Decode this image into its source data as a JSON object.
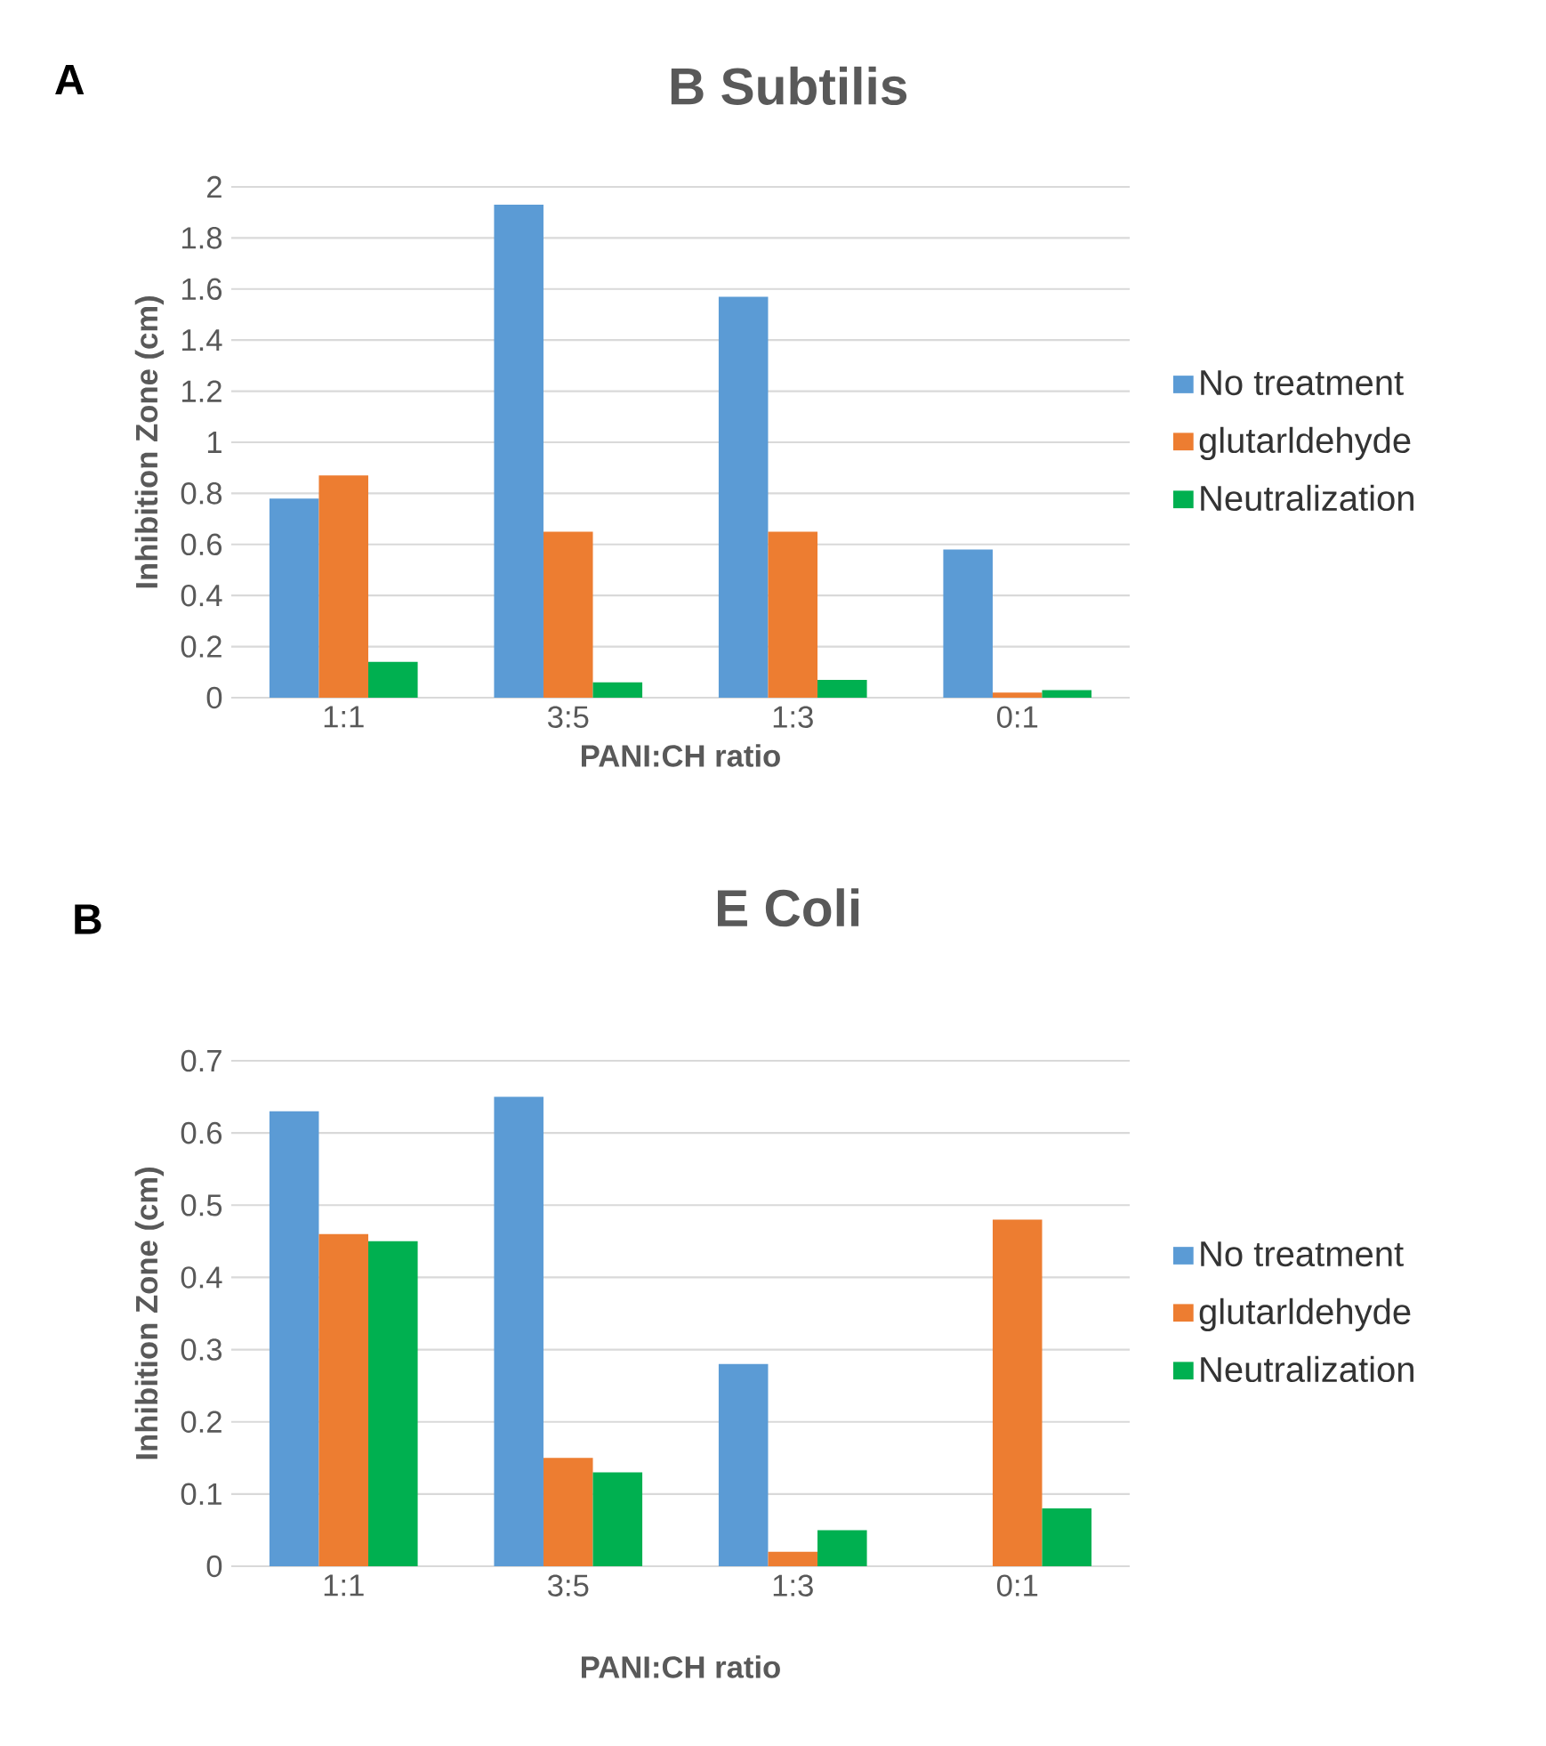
{
  "chart_data": [
    {
      "type": "bar",
      "title": "B Subtilis",
      "xlabel": "PANI:CH ratio",
      "ylabel": "Inhibition Zone (cm)",
      "annotations": [
        "A"
      ],
      "categories": [
        "1:1",
        "3:5",
        "1:3",
        "0:1"
      ],
      "series": [
        {
          "name": "No treatment",
          "color": "#5b9bd5",
          "values": [
            0.78,
            1.93,
            1.57,
            0.58
          ]
        },
        {
          "name": "glutarldehyde",
          "color": "#ed7d31",
          "values": [
            0.87,
            0.65,
            0.65,
            0.02
          ]
        },
        {
          "name": "Neutralization",
          "color": "#00b050",
          "values": [
            0.14,
            0.06,
            0.07,
            0.03
          ]
        }
      ],
      "ylim": [
        0,
        2
      ],
      "yticks": [
        0,
        0.2,
        0.4,
        0.6,
        0.8,
        1,
        1.2,
        1.4,
        1.6,
        1.8,
        2
      ],
      "grid": "y",
      "legend": "right"
    },
    {
      "type": "bar",
      "title": "E Coli",
      "xlabel": "PANI:CH ratio",
      "ylabel": "Inhibition Zone (cm)",
      "annotations": [
        "B"
      ],
      "categories": [
        "1:1",
        "3:5",
        "1:3",
        "0:1"
      ],
      "series": [
        {
          "name": "No treatment",
          "color": "#5b9bd5",
          "values": [
            0.63,
            0.65,
            0.28,
            0
          ]
        },
        {
          "name": "glutarldehyde",
          "color": "#ed7d31",
          "values": [
            0.46,
            0.15,
            0.02,
            0.48
          ]
        },
        {
          "name": "Neutralization",
          "color": "#00b050",
          "values": [
            0.45,
            0.13,
            0.05,
            0.08
          ]
        }
      ],
      "ylim": [
        0,
        0.7
      ],
      "yticks": [
        0,
        0.1,
        0.2,
        0.3,
        0.4,
        0.5,
        0.6,
        0.7
      ],
      "grid": "y",
      "legend": "right"
    }
  ]
}
